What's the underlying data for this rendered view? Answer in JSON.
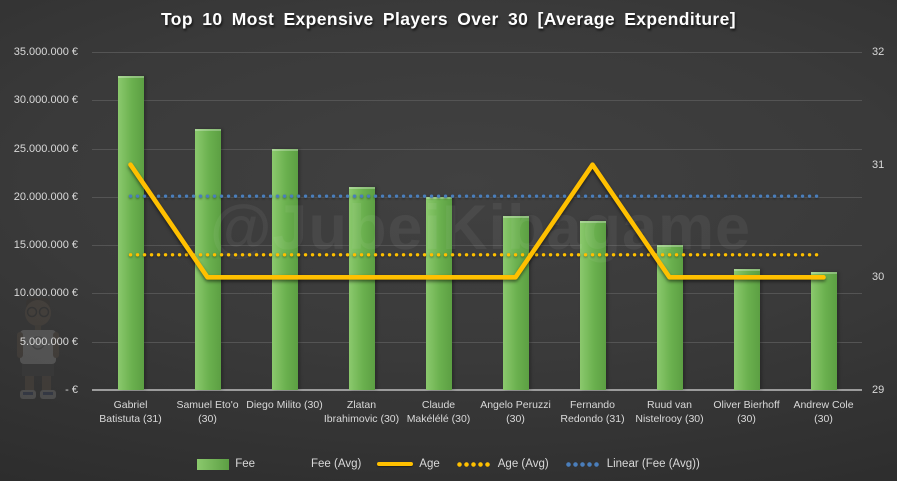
{
  "title": "Top 10 Most Expensive Players Over 30 [Average Expenditure]",
  "watermark": {
    "text": "@JubeiKibagame"
  },
  "colors": {
    "bar": "#6fb750",
    "bar_light": "#8bc96d",
    "bar_dark": "#5c9f43",
    "age_line": "#ffc000",
    "trendline": "#4a7ebb",
    "text": "#d9d9d9",
    "grid": "#545454",
    "axis_line": "#9c9c9c",
    "title": "#ffffff",
    "background": "#383838"
  },
  "chart_data": {
    "type": "combo (bar + line)",
    "title": "Top 10 Most Expensive Players Over 30 [Average Expenditure]",
    "categories": [
      "Gabriel Batistuta (31)",
      "Samuel Eto'o (30)",
      "Diego Milito (30)",
      "Zlatan Ibrahimovic (30)",
      "Claude Makélélé (30)",
      "Angelo Peruzzi (30)",
      "Fernando Redondo (31)",
      "Ruud van Nistelrooy (30)",
      "Oliver Bierhoff (30)",
      "Andrew Cole (30)"
    ],
    "series": [
      {
        "name": "Fee",
        "type": "bar",
        "axis": "left",
        "color": "#6fb750",
        "values": [
          32500000,
          27000000,
          25000000,
          21000000,
          20000000,
          18000000,
          17500000,
          15000000,
          12500000,
          12200000
        ]
      },
      {
        "name": "Age",
        "type": "line",
        "axis": "right",
        "color": "#ffc000",
        "values": [
          31,
          30,
          30,
          30,
          30,
          30,
          31,
          30,
          30,
          30
        ]
      },
      {
        "name": "Age (Avg)",
        "type": "dotted_constant_line",
        "axis": "right",
        "color": "#ffc000",
        "value": 30.2
      },
      {
        "name": "Linear (Fee (Avg))",
        "type": "dotted_trendline",
        "axis": "left",
        "color": "#4a7ebb",
        "value": 20070000
      }
    ],
    "left_axis": {
      "min": 0,
      "max": 35000000,
      "step": 5000000,
      "ticks": [
        "35.000.000 €",
        "30.000.000 €",
        "25.000.000 €",
        "20.000.000 €",
        "15.000.000 €",
        "10.000.000 €",
        "5.000.000 €",
        "- €"
      ]
    },
    "right_axis": {
      "min": 29,
      "max": 32,
      "step": 1,
      "ticks": [
        "32",
        "31",
        "30",
        "29"
      ]
    },
    "grid": true,
    "legend_position": "bottom"
  },
  "legend": [
    {
      "label": "Fee",
      "swatch": "bar",
      "color": "#6fb750"
    },
    {
      "label": "Fee (Avg)",
      "swatch": "none",
      "color": ""
    },
    {
      "label": "Age",
      "swatch": "line",
      "color": "#ffc000"
    },
    {
      "label": "Age (Avg)",
      "swatch": "dots",
      "color": "#ffc000"
    },
    {
      "label": "Linear (Fee (Avg))",
      "swatch": "dots",
      "color": "#4a7ebb"
    }
  ]
}
